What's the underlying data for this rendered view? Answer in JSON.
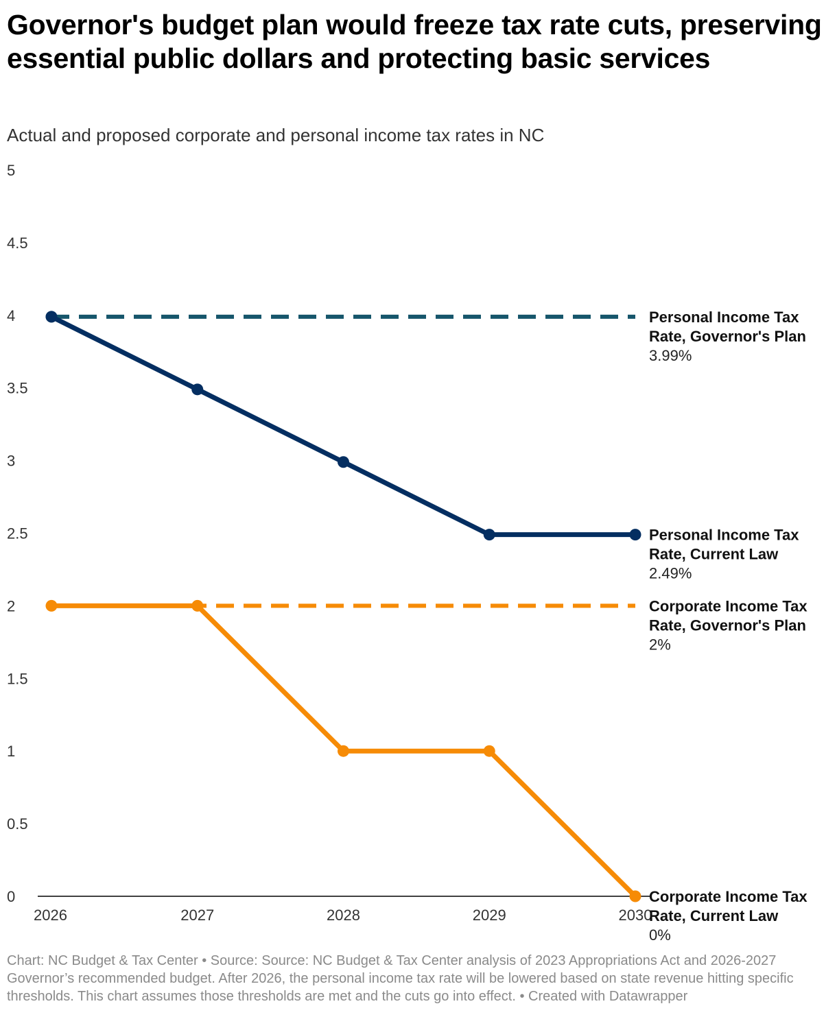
{
  "title": "Governor's budget plan would freeze tax rate cuts, preserving essential public dollars and protecting basic services",
  "subtitle": "Actual and proposed corporate and personal income tax rates in NC",
  "footer": "Chart: NC Budget & Tax Center • Source: Source: NC Budget & Tax Center analysis of 2023 Appropriations Act and 2026-2027 Governor’s recommended budget. After 2026, the personal income tax rate will be lowered based on state revenue hitting specific thresholds. This chart assumes those thresholds are met and the cuts go into effect.  • Created with Datawrapper",
  "chart_data": {
    "type": "line",
    "x": [
      "2026",
      "2027",
      "2028",
      "2029",
      "2030"
    ],
    "ylim": [
      0,
      5
    ],
    "y_ticks": [
      "0",
      "0.5",
      "1",
      "1.5",
      "2",
      "2.5",
      "3",
      "3.5",
      "4",
      "4.5",
      "5"
    ],
    "series": [
      {
        "name_line1": "Personal Income Tax",
        "name_line2": "Rate, Governor's Plan",
        "value_label": "3.99%",
        "values": [
          3.99,
          3.99,
          3.99,
          3.99,
          3.99
        ],
        "color": "#16566b",
        "dashed": true,
        "markers": [
          0
        ]
      },
      {
        "name_line1": "Personal Income Tax",
        "name_line2": "Rate, Current Law",
        "value_label": "2.49%",
        "values": [
          3.99,
          3.49,
          2.99,
          2.49,
          2.49
        ],
        "color": "#042e61",
        "dashed": false,
        "markers": [
          0,
          1,
          2,
          3,
          4
        ]
      },
      {
        "name_line1": "Corporate Income Tax",
        "name_line2": "Rate, Governor's Plan",
        "value_label": "2%",
        "values": [
          2,
          2,
          2,
          2,
          2
        ],
        "color": "#f68b06",
        "dashed": true,
        "markers": []
      },
      {
        "name_line1": "Corporate Income Tax",
        "name_line2": "Rate, Current Law",
        "value_label": "0%",
        "values": [
          2,
          2,
          1,
          1,
          0
        ],
        "color": "#f68b06",
        "dashed": false,
        "markers": [
          0,
          1,
          2,
          3,
          4
        ]
      }
    ]
  }
}
